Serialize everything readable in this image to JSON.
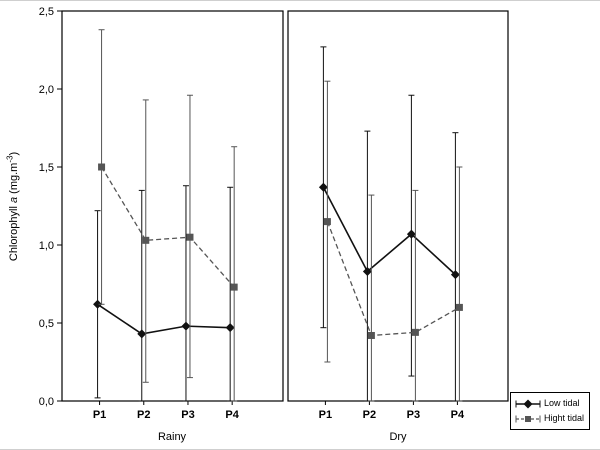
{
  "chart_data": {
    "type": "line",
    "title": "",
    "categories": [
      "P1",
      "P2",
      "P3",
      "P4"
    ],
    "ylabel": "Chlorophyll a (mg.m-3)",
    "ylabel_parts": {
      "prefix": "Chlorophyll ",
      "italic": "a",
      "unit_open": " (mg.m",
      "sup": "-3",
      "unit_close": ")"
    },
    "ylim": [
      0.0,
      2.5
    ],
    "ytick_values": [
      0.0,
      0.5,
      1.0,
      1.5,
      2.0,
      2.5
    ],
    "ytick_labels": [
      "0,0",
      "0,5",
      "1,0",
      "1,5",
      "2,0",
      "2,5"
    ],
    "legend_position": "bottom-right",
    "legend": [
      {
        "name": "Low tidal",
        "marker": "diamond",
        "line": "solid",
        "color": "#111111"
      },
      {
        "name": "Hight tidal",
        "marker": "square",
        "line": "dashed",
        "color": "#555555"
      }
    ],
    "panels": [
      {
        "title": "Rainy",
        "series": [
          {
            "name": "Low tidal",
            "values": [
              0.62,
              0.43,
              0.48,
              0.47
            ],
            "lo": [
              0.02,
              0.0,
              0.0,
              0.0
            ],
            "hi": [
              1.22,
              1.35,
              1.38,
              1.37
            ]
          },
          {
            "name": "Hight tidal",
            "values": [
              1.5,
              1.03,
              1.05,
              0.73
            ],
            "lo": [
              0.62,
              0.12,
              0.15,
              0.0
            ],
            "hi": [
              2.38,
              1.93,
              1.96,
              1.63
            ]
          }
        ]
      },
      {
        "title": "Dry",
        "series": [
          {
            "name": "Low tidal",
            "values": [
              1.37,
              0.83,
              1.07,
              0.81
            ],
            "lo": [
              0.47,
              0.0,
              0.16,
              0.0
            ],
            "hi": [
              2.27,
              1.73,
              1.96,
              1.72
            ]
          },
          {
            "name": "Hight tidal",
            "values": [
              1.15,
              0.42,
              0.44,
              0.6
            ],
            "lo": [
              0.25,
              0.0,
              0.0,
              0.0
            ],
            "hi": [
              2.05,
              1.32,
              1.35,
              1.5
            ]
          }
        ]
      }
    ]
  }
}
